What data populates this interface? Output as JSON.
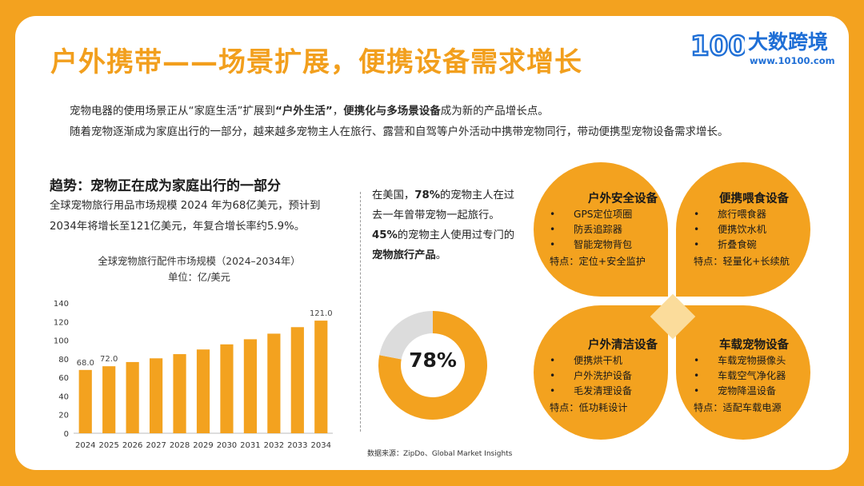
{
  "title": "户外携带——场景扩展，便携设备需求增长",
  "logo": {
    "name": "大数跨境",
    "url": "www.10100.com",
    "mark": "100"
  },
  "intro": {
    "line1_a": "宠物电器的使用场景正从“家庭生活”扩展到",
    "line1_b": "“户外生活”",
    "line1_c": "，",
    "line1_d": "便携化与多场景设备",
    "line1_e": "成为新的产品增长点。",
    "line2": "随着宠物逐渐成为家庭出行的一部分，越来越多宠物主人在旅行、露营和自驾等户外活动中携带宠物同行，带动便携型宠物设备需求增长。"
  },
  "trend": {
    "heading": "趋势：宠物正在成为家庭出行的一部分",
    "text": "全球宠物旅行用品市场规模 2024 年为68亿美元，预计到2034年将增长至121亿美元，年复合增长率约5.9%。"
  },
  "chart_data": [
    {
      "type": "bar",
      "title": "全球宠物旅行配件市场规模（2024–2034年）",
      "unit": "单位：亿/美元",
      "categories": [
        "2024",
        "2025",
        "2026",
        "2027",
        "2028",
        "2029",
        "2030",
        "2031",
        "2032",
        "2033",
        "2034"
      ],
      "values": [
        68,
        72,
        76.5,
        80.5,
        85,
        90,
        95.5,
        101,
        107,
        114,
        121
      ],
      "data_labels": {
        "0": "68.0",
        "1": "72.0",
        "10": "121.0"
      },
      "ylim": [
        0,
        140
      ],
      "yticks": [
        0,
        20,
        40,
        60,
        80,
        100,
        120,
        140
      ],
      "bar_color": "#f3a21f",
      "grid": false
    },
    {
      "type": "pie",
      "center_label": "78%",
      "values": [
        78,
        22
      ],
      "colors": [
        "#f3a21f",
        "#dcdcdc"
      ]
    }
  ],
  "stat": {
    "p1_a": "在美国，",
    "p1_b": "78%",
    "p1_c": "的宠物主人在过去一年曾带宠物一起旅行。",
    "p2_a": "45%",
    "p2_b": "的宠物主人使用过专门的",
    "p2_c": "宠物旅行产品",
    "p2_d": "。"
  },
  "source": "数据来源：ZipDo、Global Market Insights",
  "categories": [
    {
      "title": "户外安全设备",
      "items": [
        "GPS定位项圈",
        "防丢追踪器",
        "智能宠物背包"
      ],
      "feature": "特点：定位+安全监护"
    },
    {
      "title": "便携喂食设备",
      "items": [
        "旅行喂食器",
        "便携饮水机",
        "折叠食碗"
      ],
      "feature": "特点：轻量化+长续航"
    },
    {
      "title": "户外清洁设备",
      "items": [
        "便携烘干机",
        "户外洗护设备",
        "毛发清理设备"
      ],
      "feature": "特点：低功耗设计"
    },
    {
      "title": "车载宠物设备",
      "items": [
        "车载宠物摄像头",
        "车载空气净化器",
        "宠物降温设备"
      ],
      "feature": "特点：适配车载电源"
    }
  ],
  "colors": {
    "accent": "#f3a21f",
    "brand_blue": "#1f6fd6",
    "grey": "#dcdcdc",
    "diamond": "#fbdc9b"
  }
}
